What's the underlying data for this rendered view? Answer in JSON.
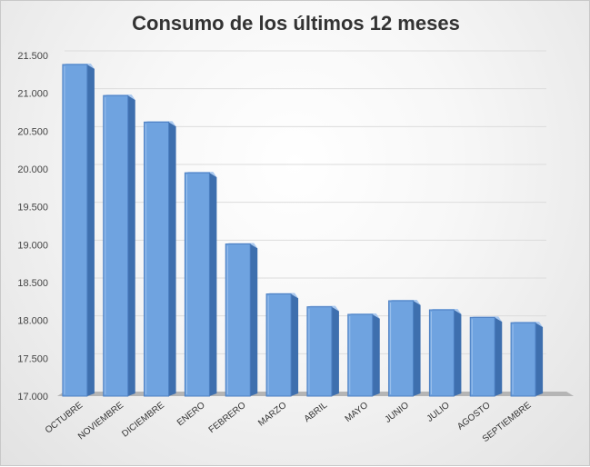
{
  "chart_data": {
    "type": "bar",
    "title": "Consumo de los últimos 12 meses",
    "categories": [
      "OCTUBRE",
      "NOVIEMBRE",
      "DICIEMBRE",
      "ENERO",
      "FEBRERO",
      "MARZO",
      "ABRIL",
      "MAYO",
      "JUNIO",
      "JULIO",
      "AGOSTO",
      "SEPTIEMBRE"
    ],
    "values": [
      21380,
      20970,
      20620,
      19950,
      19010,
      18350,
      18180,
      18080,
      18260,
      18140,
      18040,
      17970
    ],
    "yticks": [
      "17.000",
      "17.500",
      "18.000",
      "18.500",
      "19.000",
      "19.500",
      "20.000",
      "20.500",
      "21.000",
      "21.500"
    ],
    "ylim": [
      17000,
      21500
    ],
    "grid": true,
    "style": "3d-column",
    "colors": {
      "bar_front": "#6fa3e0",
      "bar_side": "#3e6fae",
      "bar_top": "#a9c8ef",
      "floor": "#c4c4c4"
    }
  }
}
